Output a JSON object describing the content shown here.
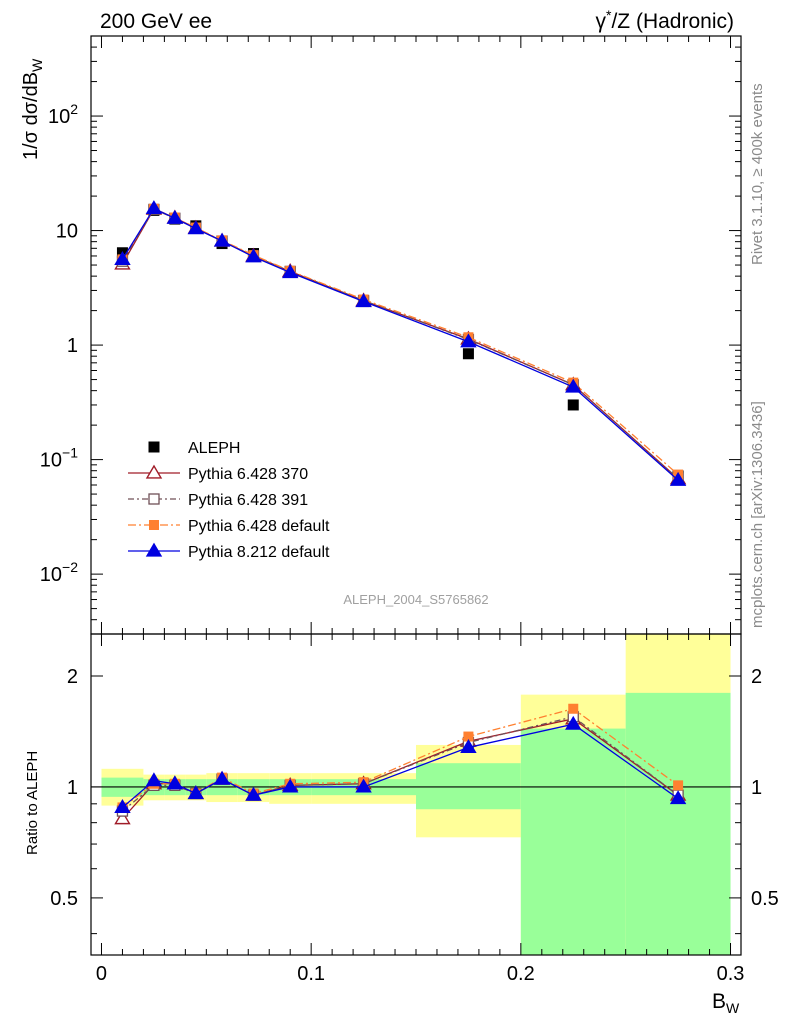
{
  "header": {
    "left": "200 GeV ee",
    "right_sym": "γ",
    "right_sup": "*",
    "right_rest": "/Z (Hadronic)"
  },
  "side_labels": {
    "top": "Rivet 3.1.10, ≥ 400k events",
    "bottom": "mcplots.cern.ch [arXiv:1306.3436]"
  },
  "analysis_label": "ALEPH_2004_S5765862",
  "colors": {
    "aleph": "#000000",
    "p370": "#a01c28",
    "p391": "#705058",
    "p6def": "#ff8030",
    "p8": "#0000e0",
    "band_inner": "#99ff99",
    "band_outer": "#ffff99"
  },
  "chart_data": [
    {
      "type": "scatter",
      "title": "",
      "ylabel": "1/σ dσ/dB_W",
      "ylabel_parts": {
        "pre": "1/σ  dσ/dB",
        "sub": "W"
      },
      "xlabel": "",
      "yscale": "log",
      "xlim": [
        -0.005,
        0.305
      ],
      "ylim": [
        0.003,
        500
      ],
      "y_ticks": [
        {
          "value": 0.01,
          "base": "10",
          "exp": "−2"
        },
        {
          "value": 0.1,
          "base": "10",
          "exp": "−1"
        },
        {
          "value": 1,
          "base": "1",
          "exp": ""
        },
        {
          "value": 10,
          "base": "10",
          "exp": ""
        },
        {
          "value": 100,
          "base": "10",
          "exp": "2"
        }
      ],
      "x": [
        0.01,
        0.025,
        0.035,
        0.045,
        0.0575,
        0.0725,
        0.09,
        0.125,
        0.175,
        0.225,
        0.275
      ],
      "series": [
        {
          "name": "ALEPH",
          "key": "aleph",
          "values": [
            6.4,
            15.0,
            12.6,
            11.0,
            7.7,
            6.3,
            4.35,
            2.4,
            0.84,
            0.3,
            0.072
          ]
        },
        {
          "name": "Pythia 6.428 370",
          "key": "p370",
          "values": [
            5.1,
            15.4,
            12.9,
            10.5,
            8.1,
            6.0,
            4.4,
            2.44,
            1.13,
            0.45,
            0.068
          ]
        },
        {
          "name": "Pythia 6.428 391",
          "key": "p391",
          "values": [
            5.4,
            15.3,
            12.8,
            10.5,
            8.1,
            6.0,
            4.4,
            2.45,
            1.12,
            0.45,
            0.068
          ]
        },
        {
          "name": "Pythia 6.428 default",
          "key": "p6def",
          "values": [
            5.6,
            15.5,
            13.0,
            10.6,
            8.2,
            6.1,
            4.45,
            2.5,
            1.17,
            0.47,
            0.074
          ]
        },
        {
          "name": "Pythia 8.212 default",
          "key": "p8",
          "values": [
            5.6,
            15.6,
            12.8,
            10.4,
            8.1,
            5.9,
            4.3,
            2.4,
            1.07,
            0.43,
            0.066
          ]
        }
      ],
      "legend_position": "bottom-left"
    },
    {
      "type": "line",
      "title": "",
      "ylabel": "Ratio to ALEPH",
      "xlabel": "B_W",
      "xlabel_parts": {
        "pre": "B",
        "sub": "W"
      },
      "yscale": "log",
      "xlim": [
        -0.005,
        0.305
      ],
      "ylim": [
        0.35,
        2.6
      ],
      "y_ticks": [
        0.5,
        1,
        2
      ],
      "y_tick_labels": [
        "0.5",
        "1",
        "2"
      ],
      "x_ticks": [
        0,
        0.1,
        0.2,
        0.3
      ],
      "x_tick_labels": [
        "0",
        "0.1",
        "0.2",
        "0.3"
      ],
      "reference_line": 1,
      "bins": [
        {
          "lo": 0.0,
          "hi": 0.02,
          "inner": [
            0.94,
            1.06
          ],
          "outer": [
            0.89,
            1.12
          ]
        },
        {
          "lo": 0.02,
          "hi": 0.03,
          "inner": [
            0.95,
            1.05
          ],
          "outer": [
            0.92,
            1.08
          ]
        },
        {
          "lo": 0.03,
          "hi": 0.04,
          "inner": [
            0.95,
            1.05
          ],
          "outer": [
            0.92,
            1.08
          ]
        },
        {
          "lo": 0.04,
          "hi": 0.05,
          "inner": [
            0.95,
            1.05
          ],
          "outer": [
            0.92,
            1.08
          ]
        },
        {
          "lo": 0.05,
          "hi": 0.065,
          "inner": [
            0.95,
            1.05
          ],
          "outer": [
            0.91,
            1.09
          ]
        },
        {
          "lo": 0.065,
          "hi": 0.08,
          "inner": [
            0.95,
            1.05
          ],
          "outer": [
            0.91,
            1.09
          ]
        },
        {
          "lo": 0.08,
          "hi": 0.1,
          "inner": [
            0.95,
            1.05
          ],
          "outer": [
            0.9,
            1.09
          ]
        },
        {
          "lo": 0.1,
          "hi": 0.15,
          "inner": [
            0.95,
            1.05
          ],
          "outer": [
            0.9,
            1.09
          ]
        },
        {
          "lo": 0.15,
          "hi": 0.2,
          "inner": [
            0.87,
            1.16
          ],
          "outer": [
            0.73,
            1.3
          ]
        },
        {
          "lo": 0.2,
          "hi": 0.25,
          "inner": [
            0.35,
            1.44
          ],
          "outer": [
            0.35,
            1.78
          ]
        },
        {
          "lo": 0.25,
          "hi": 0.3,
          "inner": [
            0.35,
            1.8
          ],
          "outer": [
            0.35,
            2.6
          ]
        }
      ],
      "series": [
        {
          "name": "Pythia 6.428 370",
          "key": "p370",
          "values": [
            0.82,
            1.02,
            1.02,
            0.96,
            1.05,
            0.95,
            1.01,
            1.02,
            1.33,
            1.53,
            0.95
          ]
        },
        {
          "name": "Pythia 6.428 391",
          "key": "p391",
          "values": [
            0.86,
            1.01,
            1.01,
            0.96,
            1.05,
            0.95,
            1.01,
            1.02,
            1.32,
            1.55,
            0.95
          ]
        },
        {
          "name": "Pythia 6.428 default",
          "key": "p6def",
          "values": [
            0.88,
            1.02,
            1.02,
            0.96,
            1.06,
            0.96,
            1.02,
            1.03,
            1.37,
            1.63,
            1.01
          ]
        },
        {
          "name": "Pythia 8.212 default",
          "key": "p8",
          "values": [
            0.88,
            1.04,
            1.02,
            0.96,
            1.05,
            0.95,
            1.0,
            1.0,
            1.28,
            1.48,
            0.93
          ]
        }
      ]
    }
  ]
}
